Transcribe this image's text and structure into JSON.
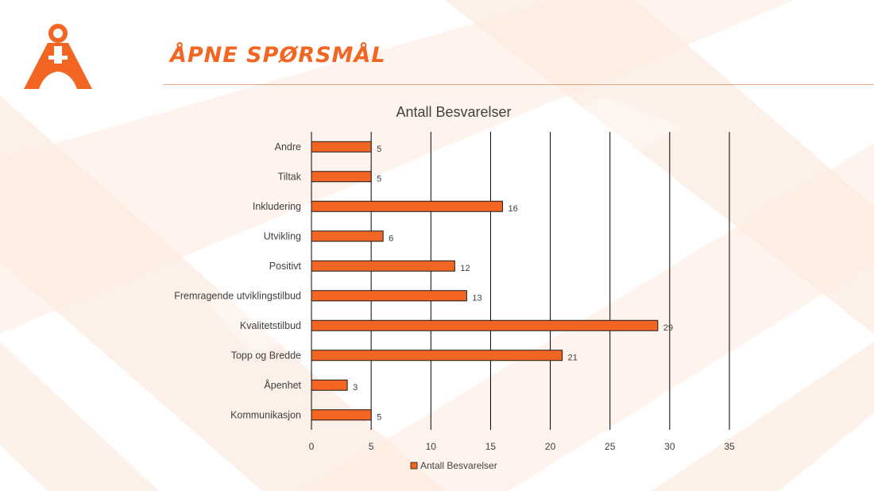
{
  "slide": {
    "title": "ÅPNE SPØRSMÅL",
    "logo_icon": "orange-a-ring-logo-icon"
  },
  "colors": {
    "accent": "#f26522",
    "bar_fill": "#f26522",
    "bar_stroke": "#1a1a1a",
    "gridline": "#000000",
    "text": "#404040"
  },
  "chart_data": {
    "type": "bar",
    "orientation": "horizontal",
    "title": "Antall Besvarelser",
    "categories": [
      "Andre",
      "Tiltak",
      "Inkludering",
      "Utvikling",
      "Positivt",
      "Fremragende utviklingstilbud",
      "Kvalitetstilbud",
      "Topp og Bredde",
      "Åpenhet",
      "Kommunikasjon"
    ],
    "series": [
      {
        "name": "Antall Besvarelser",
        "values": [
          5,
          5,
          16,
          6,
          12,
          13,
          29,
          21,
          3,
          5
        ]
      }
    ],
    "xlim": [
      0,
      35
    ],
    "xticks": [
      0,
      5,
      10,
      15,
      20,
      25,
      30,
      35
    ],
    "grid": true,
    "data_labels": true,
    "legend_position": "bottom"
  }
}
